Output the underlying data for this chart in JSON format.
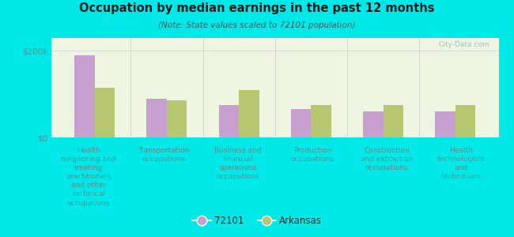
{
  "title": "Occupation by median earnings in the past 12 months",
  "subtitle": "(Note: State values scaled to 72101 population)",
  "background_color": "#00e8e8",
  "plot_bg_color": "#eef5e0",
  "categories": [
    "Health\ndiagnosing and\ntreating\npractitioners\nand other\ntechnical\noccupations",
    "Transportation\noccupations",
    "Business and\nfinancial\noperations\noccupations",
    "Production\noccupations",
    "Construction\nand extraction\noccupations",
    "Health\ntechnologists\nand\ntechnicians"
  ],
  "values_72101": [
    190000,
    90000,
    75000,
    65000,
    60000,
    60000
  ],
  "values_arkansas": [
    115000,
    85000,
    110000,
    75000,
    75000,
    75000
  ],
  "color_72101": "#c8a0d0",
  "color_arkansas": "#b8c870",
  "ytick_0": "$0",
  "ytick_200k": "$200k",
  "ylim": [
    0,
    230000
  ],
  "bar_width": 0.28,
  "legend_label_72101": "72101",
  "legend_label_arkansas": "Arkansas",
  "watermark": "City-Data.com",
  "label_color": "#5a9090",
  "title_color": "#1a1a1a"
}
